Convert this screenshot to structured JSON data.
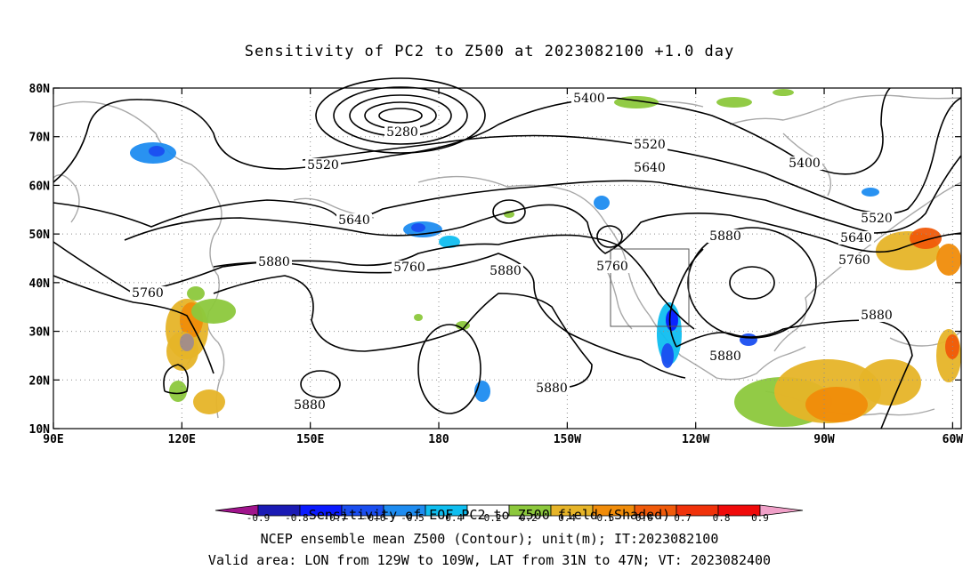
{
  "title": "Sensitivity of PC2 to Z500 at 2023082100 +1.0 day",
  "map": {
    "lon_range": [
      90,
      302
    ],
    "lat_range": [
      10,
      80
    ],
    "lon_ticks": [
      "90E",
      "120E",
      "150E",
      "180",
      "150W",
      "120W",
      "90W",
      "60W"
    ],
    "lat_ticks": [
      "10N",
      "20N",
      "30N",
      "40N",
      "50N",
      "60N",
      "70N",
      "80N"
    ],
    "contour_labels": [
      "5280",
      "5400",
      "5400",
      "5520",
      "5520",
      "5520",
      "5640",
      "5640",
      "5640",
      "5760",
      "5760",
      "5760",
      "5760",
      "5880",
      "5880",
      "5880",
      "5880",
      "5880",
      "5880",
      "5880"
    ],
    "valid_box": {
      "lon_west": 231,
      "lon_east": 251,
      "lat_south": 31,
      "lat_north": 47
    }
  },
  "colorbar": {
    "labels": [
      "-0.9",
      "-0.8",
      "-0.7",
      "-0.6",
      "-0.5",
      "-0.4",
      "-0.2",
      "0.2",
      "0.4",
      "0.5",
      "0.6",
      "0.7",
      "0.8",
      "0.9"
    ],
    "colors": [
      "#a0148c",
      "#1a1ab4",
      "#0a1aff",
      "#1a4ef0",
      "#1e8cf0",
      "#0fbef0",
      "#ffffff",
      "#8cc83c",
      "#e6b428",
      "#f08c0a",
      "#f05a0a",
      "#f0320a",
      "#f00a0a",
      "#f0a0c8"
    ]
  },
  "captions": {
    "line1": "Sensitivity of EOF PC2 to Z500 field (Shaded)",
    "line2": "NCEP ensemble mean Z500 (Contour); unit(m); IT:2023082100",
    "line3": "Valid area: LON from 129W to 109W, LAT from 31N to 47N; VT: 2023082400"
  }
}
